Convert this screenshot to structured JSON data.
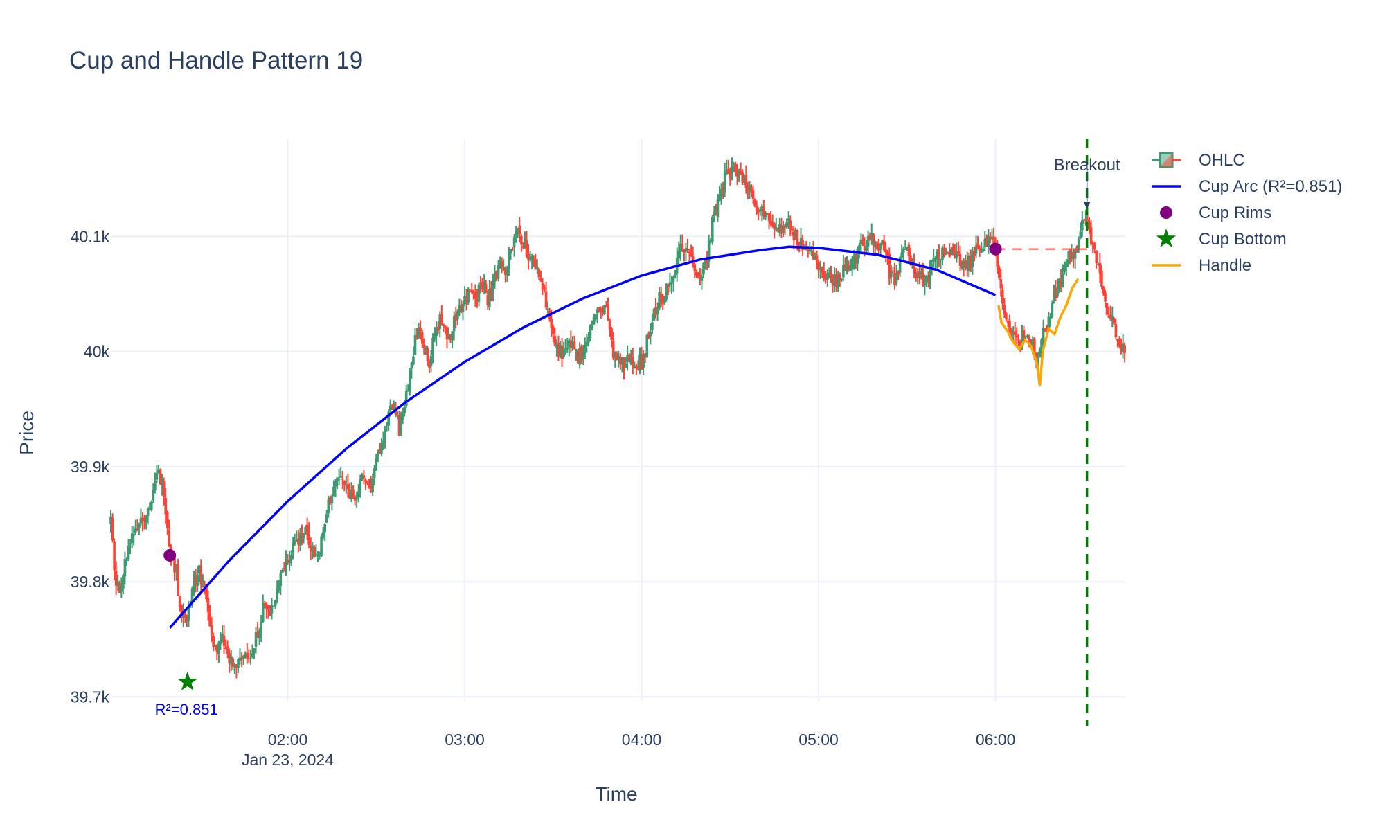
{
  "chart_data": {
    "type": "candlestick",
    "title": "Cup and Handle Pattern 19",
    "xlabel": "Time",
    "ylabel": "Price",
    "x_tick_labels": [
      "02:00",
      "03:00",
      "04:00",
      "05:00",
      "06:00"
    ],
    "x_tick_minutes": [
      120,
      180,
      240,
      300,
      360
    ],
    "x_date_label": "Jan 23, 2024",
    "x_range_minutes": [
      60,
      404
    ],
    "y_tick_labels": [
      "39.7k",
      "39.8k",
      "39.9k",
      "40k",
      "40.1k"
    ],
    "y_tick_values": [
      39700,
      39800,
      39900,
      40000,
      40100
    ],
    "ylim": [
      39675,
      40185
    ],
    "grid": true,
    "legend_position": "top-right",
    "legend": [
      "OHLC",
      "Cup Arc (R²=0.851)",
      "Cup Rims",
      "Cup Bottom",
      "Handle"
    ],
    "colors": {
      "increasing": "#3d9970",
      "decreasing": "#ff4136",
      "cup_arc": "#0000ff",
      "rims": "#800080",
      "bottom": "#008000",
      "handle": "#ffa500",
      "breakout": "#008000",
      "rim_line": "#ff4136",
      "r2_label": "#0000ff",
      "grid": "#ebf0f8"
    },
    "price_anchors": [
      [
        60,
        39850
      ],
      [
        62,
        39790
      ],
      [
        64,
        39805
      ],
      [
        66,
        39830
      ],
      [
        68,
        39845
      ],
      [
        70,
        39855
      ],
      [
        72,
        39860
      ],
      [
        74,
        39870
      ],
      [
        76,
        39895
      ],
      [
        78,
        39880
      ],
      [
        80,
        39830
      ],
      [
        82,
        39810
      ],
      [
        84,
        39770
      ],
      [
        86,
        39775
      ],
      [
        88,
        39800
      ],
      [
        90,
        39810
      ],
      [
        92,
        39790
      ],
      [
        94,
        39755
      ],
      [
        96,
        39740
      ],
      [
        98,
        39750
      ],
      [
        100,
        39730
      ],
      [
        102,
        39725
      ],
      [
        104,
        39730
      ],
      [
        106,
        39740
      ],
      [
        108,
        39735
      ],
      [
        110,
        39760
      ],
      [
        112,
        39780
      ],
      [
        114,
        39770
      ],
      [
        116,
        39790
      ],
      [
        118,
        39810
      ],
      [
        120,
        39820
      ],
      [
        122,
        39835
      ],
      [
        124,
        39840
      ],
      [
        126,
        39845
      ],
      [
        128,
        39830
      ],
      [
        130,
        39820
      ],
      [
        132,
        39840
      ],
      [
        134,
        39870
      ],
      [
        136,
        39885
      ],
      [
        138,
        39890
      ],
      [
        140,
        39880
      ],
      [
        142,
        39875
      ],
      [
        144,
        39880
      ],
      [
        146,
        39890
      ],
      [
        148,
        39880
      ],
      [
        150,
        39900
      ],
      [
        152,
        39925
      ],
      [
        154,
        39945
      ],
      [
        156,
        39950
      ],
      [
        158,
        39930
      ],
      [
        160,
        39960
      ],
      [
        162,
        39990
      ],
      [
        164,
        40020
      ],
      [
        166,
        40010
      ],
      [
        168,
        39990
      ],
      [
        170,
        40015
      ],
      [
        172,
        40030
      ],
      [
        174,
        40010
      ],
      [
        176,
        40020
      ],
      [
        178,
        40040
      ],
      [
        180,
        40045
      ],
      [
        182,
        40055
      ],
      [
        184,
        40050
      ],
      [
        186,
        40060
      ],
      [
        188,
        40045
      ],
      [
        190,
        40060
      ],
      [
        192,
        40080
      ],
      [
        194,
        40070
      ],
      [
        196,
        40090
      ],
      [
        198,
        40105
      ],
      [
        200,
        40095
      ],
      [
        202,
        40080
      ],
      [
        204,
        40075
      ],
      [
        206,
        40060
      ],
      [
        208,
        40040
      ],
      [
        210,
        40010
      ],
      [
        212,
        40000
      ],
      [
        214,
        39995
      ],
      [
        216,
        40010
      ],
      [
        218,
        39995
      ],
      [
        220,
        40000
      ],
      [
        222,
        40015
      ],
      [
        224,
        40030
      ],
      [
        226,
        40035
      ],
      [
        228,
        40040
      ],
      [
        230,
        40000
      ],
      [
        232,
        39990
      ],
      [
        234,
        39985
      ],
      [
        236,
        39995
      ],
      [
        238,
        39990
      ],
      [
        240,
        39990
      ],
      [
        242,
        40010
      ],
      [
        244,
        40030
      ],
      [
        246,
        40045
      ],
      [
        248,
        40050
      ],
      [
        250,
        40065
      ],
      [
        252,
        40080
      ],
      [
        254,
        40095
      ],
      [
        256,
        40085
      ],
      [
        258,
        40075
      ],
      [
        260,
        40065
      ],
      [
        262,
        40080
      ],
      [
        264,
        40110
      ],
      [
        266,
        40130
      ],
      [
        268,
        40150
      ],
      [
        270,
        40155
      ],
      [
        272,
        40160
      ],
      [
        274,
        40150
      ],
      [
        276,
        40145
      ],
      [
        278,
        40135
      ],
      [
        280,
        40120
      ],
      [
        282,
        40125
      ],
      [
        284,
        40115
      ],
      [
        286,
        40110
      ],
      [
        288,
        40105
      ],
      [
        290,
        40110
      ],
      [
        292,
        40100
      ],
      [
        294,
        40095
      ],
      [
        296,
        40090
      ],
      [
        298,
        40080
      ],
      [
        300,
        40075
      ],
      [
        302,
        40070
      ],
      [
        304,
        40065
      ],
      [
        306,
        40060
      ],
      [
        308,
        40070
      ],
      [
        310,
        40075
      ],
      [
        312,
        40080
      ],
      [
        314,
        40090
      ],
      [
        316,
        40095
      ],
      [
        318,
        40100
      ],
      [
        320,
        40095
      ],
      [
        322,
        40090
      ],
      [
        324,
        40070
      ],
      [
        326,
        40060
      ],
      [
        328,
        40080
      ],
      [
        330,
        40090
      ],
      [
        332,
        40075
      ],
      [
        334,
        40065
      ],
      [
        336,
        40060
      ],
      [
        338,
        40070
      ],
      [
        340,
        40080
      ],
      [
        342,
        40085
      ],
      [
        344,
        40090
      ],
      [
        346,
        40085
      ],
      [
        348,
        40080
      ],
      [
        350,
        40075
      ],
      [
        352,
        40080
      ],
      [
        354,
        40095
      ],
      [
        356,
        40090
      ],
      [
        358,
        40100
      ],
      [
        360,
        40090
      ],
      [
        362,
        40050
      ],
      [
        364,
        40025
      ],
      [
        366,
        40010
      ],
      [
        368,
        40005
      ],
      [
        370,
        40020
      ],
      [
        372,
        40010
      ],
      [
        374,
        39995
      ],
      [
        376,
        40015
      ],
      [
        378,
        40030
      ],
      [
        380,
        40050
      ],
      [
        382,
        40060
      ],
      [
        384,
        40075
      ],
      [
        386,
        40085
      ],
      [
        388,
        40090
      ],
      [
        390,
        40115
      ],
      [
        392,
        40105
      ],
      [
        394,
        40080
      ],
      [
        396,
        40055
      ],
      [
        398,
        40035
      ],
      [
        400,
        40025
      ],
      [
        402,
        40010
      ],
      [
        404,
        39995
      ]
    ],
    "cup_arc_points": [
      [
        80,
        39760
      ],
      [
        100,
        39818
      ],
      [
        120,
        39870
      ],
      [
        140,
        39916
      ],
      [
        160,
        39956
      ],
      [
        180,
        39991
      ],
      [
        200,
        40021
      ],
      [
        220,
        40046
      ],
      [
        240,
        40066
      ],
      [
        260,
        40080
      ],
      [
        280,
        40088
      ],
      [
        290,
        40091
      ],
      [
        300,
        40090
      ],
      [
        320,
        40084
      ],
      [
        340,
        40071
      ],
      [
        360,
        40049
      ]
    ],
    "handle_points": [
      [
        361,
        40040
      ],
      [
        362,
        40025
      ],
      [
        364,
        40018
      ],
      [
        366,
        40008
      ],
      [
        368,
        40002
      ],
      [
        370,
        40010
      ],
      [
        372,
        40005
      ],
      [
        374,
        39990
      ],
      [
        375,
        39970
      ],
      [
        376,
        40000
      ],
      [
        378,
        40020
      ],
      [
        380,
        40015
      ],
      [
        382,
        40030
      ],
      [
        384,
        40040
      ],
      [
        386,
        40055
      ],
      [
        388,
        40063
      ]
    ],
    "cup_rims": [
      [
        80,
        39823
      ],
      [
        360,
        40089
      ]
    ],
    "cup_bottom": [
      86,
      39713
    ],
    "rim_line": {
      "x": [
        360,
        391
      ],
      "y": 40089
    },
    "breakout": {
      "x": 391,
      "label": "Breakout",
      "arrow_to_price": 40124
    },
    "r2_label": "R²=0.851"
  }
}
